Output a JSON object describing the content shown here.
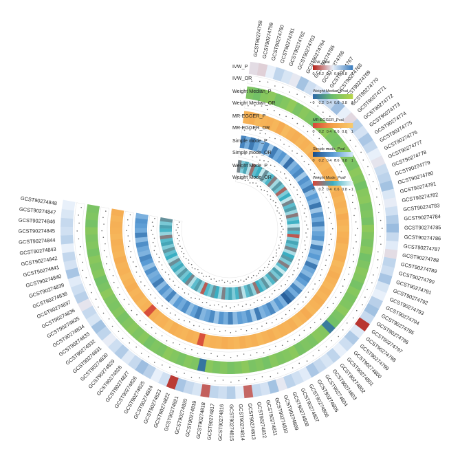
{
  "chart_data": {
    "type": "heatmap",
    "layout": "circular",
    "title": "",
    "categories": [
      "GCST90274758",
      "GCST90274759",
      "GCST90274760",
      "GCST90274761",
      "GCST90274762",
      "GCST90274763",
      "GCST90274764",
      "GCST90274765",
      "GCST90274766",
      "GCST90274767",
      "GCST90274768",
      "GCST90274769",
      "GCST90274770",
      "GCST90274771",
      "GCST90274772",
      "GCST90274773",
      "GCST90274774",
      "GCST90274775",
      "GCST90274776",
      "GCST90274777",
      "GCST90274778",
      "GCST90274779",
      "GCST90274780",
      "GCST90274781",
      "GCST90274782",
      "GCST90274783",
      "GCST90274784",
      "GCST90274785",
      "GCST90274786",
      "GCST90274787",
      "GCST90274788",
      "GCST90274789",
      "GCST90274790",
      "GCST90274791",
      "GCST90274792",
      "GCST90274793",
      "GCST90274794",
      "GCST90274795",
      "GCST90274796",
      "GCST90274797",
      "GCST90274798",
      "GCST90274799",
      "GCST90274800",
      "GCST90274801",
      "GCST90274802",
      "GCST90274803",
      "GCST90274804",
      "GCST90274805",
      "GCST90274806",
      "GCST90274807",
      "GCST90274808",
      "GCST90274809",
      "GCST90274810",
      "GCST90274811",
      "GCST90274812",
      "GCST90274813",
      "GCST90274814",
      "GCST90274815",
      "GCST90274816",
      "GCST90274817",
      "GCST90274818",
      "GCST90274819",
      "GCST90274820",
      "GCST90274821",
      "GCST90274822",
      "GCST90274823",
      "GCST90274824",
      "GCST90274825",
      "GCST90274826",
      "GCST90274827",
      "GCST90274828",
      "GCST90274829",
      "GCST90274830",
      "GCST90274831",
      "GCST90274832",
      "GCST90274833",
      "GCST90274834",
      "GCST90274835",
      "GCST90274836",
      "GCST90274837",
      "GCST90274838",
      "GCST90274839",
      "GCST90274840",
      "GCST90274841",
      "GCST90274842",
      "GCST90274843",
      "GCST90274844",
      "GCST90274845",
      "GCST90274846",
      "GCST90274847",
      "GCST90274848"
    ],
    "tracks": [
      {
        "name": "IVW_P",
        "kind": "pval",
        "legend": "IVW_Pval",
        "low": "#b5261e",
        "high": "#3f7fbf",
        "mid": "#e8f0fa"
      },
      {
        "name": "IVW_OR",
        "kind": "or"
      },
      {
        "name": "Weight Median_P",
        "kind": "pval",
        "legend": "Weight Median_Pval",
        "low": "#2d6aa8",
        "high": "#b5d44a",
        "mid": "#6cbf6a"
      },
      {
        "name": "Weight Median_OR",
        "kind": "or"
      },
      {
        "name": "MR-EGGER_P",
        "kind": "pval",
        "legend": "MR-EGGER_Pval",
        "low": "#d6483a",
        "high": "#f8c96a",
        "mid": "#f4a24a"
      },
      {
        "name": "MR-EGGER_OR",
        "kind": "or"
      },
      {
        "name": "Simple mode_P",
        "kind": "pval",
        "legend": "Simple mode_Pval",
        "low": "#1b4f8a",
        "high": "#cfe6f6",
        "mid": "#5a9bd4"
      },
      {
        "name": "Simple mode_OR",
        "kind": "or"
      },
      {
        "name": "Weight Mode_P",
        "kind": "pval",
        "legend": "Weight Mode_Pval",
        "low": "#d6483a",
        "high": "#e8f6f8",
        "mid": "#3aaec2"
      },
      {
        "name": "Weight Mode_OR",
        "kind": "or"
      }
    ],
    "legend_ticks": [
      "0",
      "0.2",
      "0.4",
      "0.6",
      "0.8",
      "1"
    ],
    "value_range": [
      0,
      1
    ],
    "legend_placement": "top-right",
    "track_labels_placement": "gap-top",
    "pvalues": {
      "IVW_P": [
        0.45,
        0.42,
        0.5,
        0.62,
        0.55,
        0.48,
        0.7,
        0.58,
        0.52,
        0.66,
        0.6,
        0.72,
        0.5,
        0.44,
        0.64,
        0.56,
        0.68,
        0.61,
        0.5,
        0.47,
        0.59,
        0.63,
        0.7,
        0.54,
        0.49,
        0.57,
        0.66,
        0.73,
        0.6,
        0.52,
        0.45,
        0.62,
        0.58,
        0.69,
        0.55,
        0.5,
        0.64,
        0.71,
        0.6,
        0.04,
        0.53,
        0.67,
        0.58,
        0.5,
        0.62,
        0.55,
        0.6,
        0.68,
        0.52,
        0.57,
        0.63,
        0.48,
        0.7,
        0.56,
        0.6,
        0.16,
        0.51,
        0.65,
        0.58,
        0.62,
        0.14,
        0.55,
        0.6,
        0.69,
        0.05,
        0.57,
        0.5,
        0.64,
        0.72,
        0.6,
        0.53,
        0.66,
        0.58,
        0.49,
        0.62,
        0.7,
        0.55,
        0.6,
        0.47,
        0.64,
        0.58,
        0.52,
        0.69,
        0.56,
        0.61,
        0.5,
        0.63,
        0.57,
        0.6,
        0.54,
        0.5
      ],
      "Weight Median_P": [
        0.62,
        0.55,
        0.68,
        0.72,
        0.58,
        0.66,
        0.75,
        0.6,
        0.7,
        0.64,
        0.52,
        0.69,
        0.74,
        0.61,
        0.57,
        0.67,
        0.7,
        0.63,
        0.59,
        0.72,
        0.66,
        0.55,
        0.68,
        0.71,
        0.6,
        0.64,
        0.58,
        0.73,
        0.65,
        0.6,
        0.69,
        0.55,
        0.62,
        0.7,
        0.66,
        0.57,
        0.68,
        0.61,
        0.64,
        0.72,
        0.6,
        0.55,
        0.1,
        0.67,
        0.7,
        0.6,
        0.63,
        0.58,
        0.71,
        0.66,
        0.62,
        0.69,
        0.57,
        0.65,
        0.6,
        0.72,
        0.64,
        0.58,
        0.67,
        0.61,
        0.7,
        0.06,
        0.63,
        0.68,
        0.59,
        0.66,
        0.72,
        0.6,
        0.64,
        0.57,
        0.69,
        0.62,
        0.7,
        0.65,
        0.58,
        0.67,
        0.61,
        0.64,
        0.72,
        0.6,
        0.55,
        0.68,
        0.63,
        0.7,
        0.59,
        0.66,
        0.62,
        0.69,
        0.57,
        0.64,
        0.6
      ],
      "MR-EGGER_P": [
        0.7,
        0.65,
        0.78,
        0.72,
        0.68,
        0.75,
        0.62,
        0.8,
        0.7,
        0.66,
        0.74,
        0.69,
        0.77,
        0.63,
        0.71,
        0.68,
        0.76,
        0.64,
        0.72,
        0.7,
        0.79,
        0.66,
        0.73,
        0.68,
        0.75,
        0.62,
        0.71,
        0.77,
        0.69,
        0.65,
        0.74,
        0.7,
        0.67,
        0.78,
        0.72,
        0.64,
        0.7,
        0.76,
        0.68,
        0.73,
        0.66,
        0.71,
        0.75,
        0.62,
        0.7,
        0.78,
        0.67,
        0.72,
        0.69,
        0.74,
        0.65,
        0.71,
        0.77,
        0.68,
        0.73,
        0.66,
        0.75,
        0.7,
        0.64,
        0.72,
        0.69,
        0.76,
        0.05,
        0.7,
        0.67,
        0.74,
        0.71,
        0.65,
        0.78,
        0.69,
        0.72,
        0.66,
        0.04,
        0.7,
        0.75,
        0.68,
        0.73,
        0.64,
        0.71,
        0.77,
        0.69,
        0.72,
        0.66,
        0.74,
        0.7,
        0.67,
        0.75,
        0.71,
        0.68,
        0.73,
        0.65
      ],
      "Simple mode_P": [
        0.35,
        0.62,
        0.28,
        0.55,
        0.7,
        0.4,
        0.82,
        0.3,
        0.6,
        0.48,
        0.75,
        0.22,
        0.66,
        0.52,
        0.38,
        0.8,
        0.45,
        0.58,
        0.3,
        0.72,
        0.5,
        0.64,
        0.26,
        0.78,
        0.42,
        0.6,
        0.34,
        0.7,
        0.55,
        0.46,
        0.8,
        0.32,
        0.62,
        0.5,
        0.74,
        0.28,
        0.58,
        0.68,
        0.4,
        0.52,
        0.76,
        0.36,
        0.6,
        0.3,
        0.12,
        0.64,
        0.48,
        0.72,
        0.38,
        0.56,
        0.66,
        0.3,
        0.8,
        0.44,
        0.6,
        0.52,
        0.7,
        0.34,
        0.62,
        0.46,
        0.76,
        0.4,
        0.58,
        0.68,
        0.32,
        0.54,
        0.72,
        0.42,
        0.6,
        0.5,
        0.78,
        0.36,
        0.64,
        0.46,
        0.7,
        0.3,
        0.56,
        0.62,
        0.44,
        0.74,
        0.5,
        0.38,
        0.66,
        0.58,
        0.42,
        0.7,
        0.34,
        0.6,
        0.52,
        0.46,
        0.64
      ],
      "Weight Mode_P": [
        0.3,
        0.7,
        0.45,
        0.85,
        0.2,
        0.6,
        0.5,
        0.9,
        0.35,
        0.75,
        0.55,
        0.25,
        0.8,
        0.4,
        0.65,
        0.15,
        0.7,
        0.5,
        0.88,
        0.3,
        0.6,
        0.42,
        0.78,
        0.24,
        0.66,
        0.52,
        0.86,
        0.36,
        0.58,
        0.08,
        0.72,
        0.46,
        0.62,
        0.3,
        0.82,
        0.5,
        0.4,
        0.7,
        0.26,
        0.6,
        0.9,
        0.44,
        0.68,
        0.34,
        0.56,
        0.8,
        0.38,
        0.64,
        0.5,
        0.2,
        0.74,
        0.42,
        0.6,
        0.86,
        0.32,
        0.54,
        0.7,
        0.46,
        0.62,
        0.28,
        0.78,
        0.5,
        0.36,
        0.68,
        0.56,
        0.1,
        0.74,
        0.42,
        0.6,
        0.84,
        0.3,
        0.52,
        0.66,
        0.4,
        0.72,
        0.48,
        0.6,
        0.34,
        0.8,
        0.5,
        0.62,
        0.38,
        0.7,
        0.46,
        0.58,
        0.26,
        0.76,
        0.54,
        0.44,
        0.68,
        0.36
      ]
    }
  }
}
